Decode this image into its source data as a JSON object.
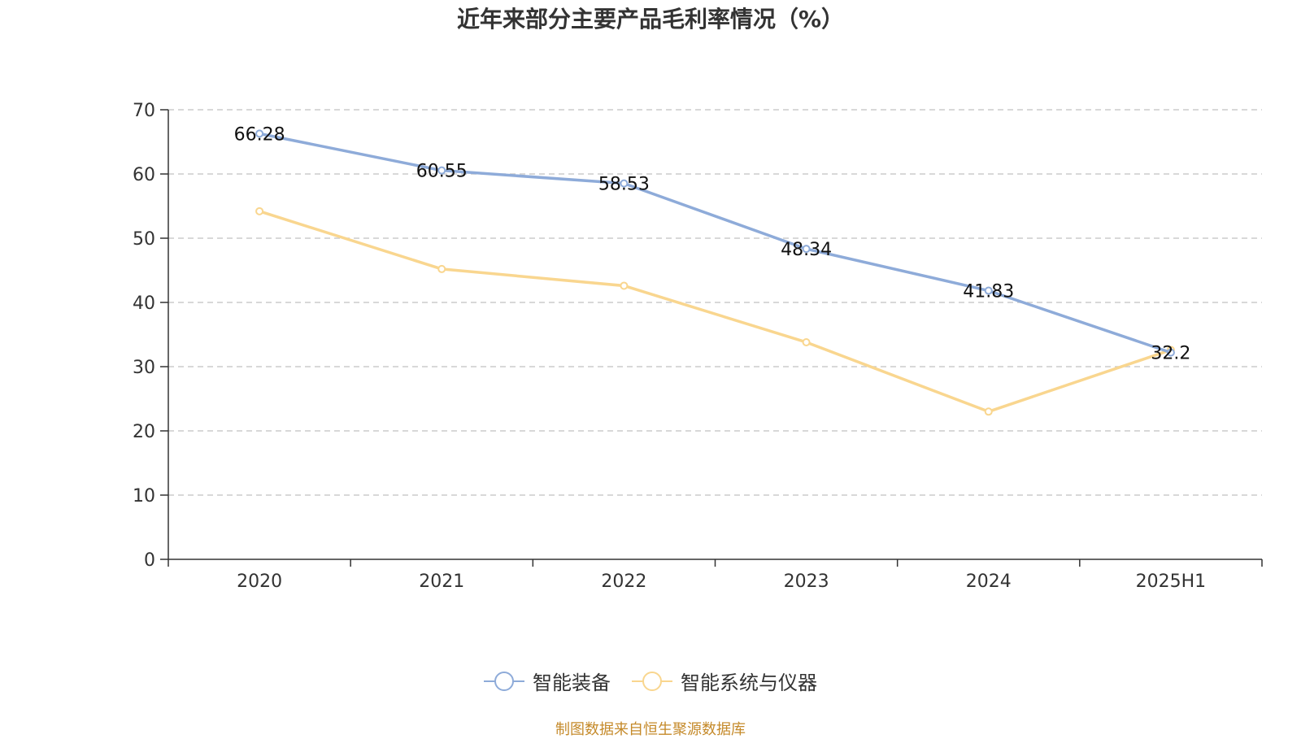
{
  "title": "近年来部分主要产品毛利率情况（%）",
  "source": "制图数据来自恒生聚源数据库",
  "chart_data": {
    "type": "line",
    "categories": [
      "2020",
      "2021",
      "2022",
      "2023",
      "2024",
      "2025H1"
    ],
    "ylim": [
      0,
      70
    ],
    "yticks": [
      0,
      10,
      20,
      30,
      40,
      50,
      60,
      70
    ],
    "grid": true,
    "legend_position": "bottom-center",
    "series": [
      {
        "name": "智能装备",
        "color": "#8eabd9",
        "values": [
          66.28,
          60.55,
          58.53,
          48.34,
          41.83,
          32.2
        ],
        "labels": [
          "66.28",
          "60.55",
          "58.53",
          "48.34",
          "41.83",
          "32.2"
        ]
      },
      {
        "name": "智能系统与仪器",
        "color": "#f9d68f",
        "values": [
          54.2,
          45.2,
          42.6,
          33.8,
          23.0,
          32.6
        ],
        "labels": []
      }
    ]
  }
}
